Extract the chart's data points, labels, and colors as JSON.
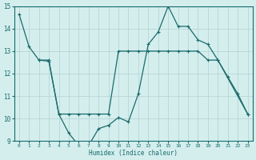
{
  "line1_x": [
    0,
    1,
    2,
    3,
    4,
    5,
    6,
    7,
    8,
    9,
    10,
    11,
    12,
    13,
    14,
    15,
    16,
    17,
    18,
    19,
    20,
    21,
    22,
    23
  ],
  "line1_y": [
    14.65,
    13.2,
    12.6,
    12.55,
    10.2,
    9.35,
    8.8,
    8.8,
    9.55,
    9.7,
    10.05,
    9.85,
    11.1,
    13.3,
    13.85,
    15.0,
    14.1,
    14.1,
    13.5,
    13.3,
    12.6,
    11.85,
    11.1,
    10.2
  ],
  "line2_x": [
    2,
    3,
    4,
    5,
    6,
    7,
    8,
    9,
    10,
    11,
    12,
    13,
    14,
    15,
    16,
    17,
    18,
    19,
    20,
    23
  ],
  "line2_y": [
    12.6,
    12.6,
    10.2,
    10.2,
    10.2,
    10.2,
    10.2,
    10.2,
    13.0,
    13.0,
    13.0,
    13.0,
    13.0,
    13.0,
    13.0,
    13.0,
    13.0,
    12.6,
    12.6,
    10.2
  ],
  "line2_markers_x": [
    2,
    4,
    10,
    19,
    20,
    23
  ],
  "line2_markers_y": [
    12.6,
    10.2,
    13.0,
    12.6,
    12.6,
    10.2
  ],
  "color": "#1a6b6b",
  "bg_color": "#d4eeee",
  "grid_color": "#b8d8d8",
  "xlim": [
    -0.5,
    23.5
  ],
  "ylim": [
    9,
    15
  ],
  "yticks": [
    9,
    10,
    11,
    12,
    13,
    14,
    15
  ],
  "xticks": [
    0,
    1,
    2,
    3,
    4,
    5,
    6,
    7,
    8,
    9,
    10,
    11,
    12,
    13,
    14,
    15,
    16,
    17,
    18,
    19,
    20,
    21,
    22,
    23
  ],
  "xlabel": "Humidex (Indice chaleur)"
}
